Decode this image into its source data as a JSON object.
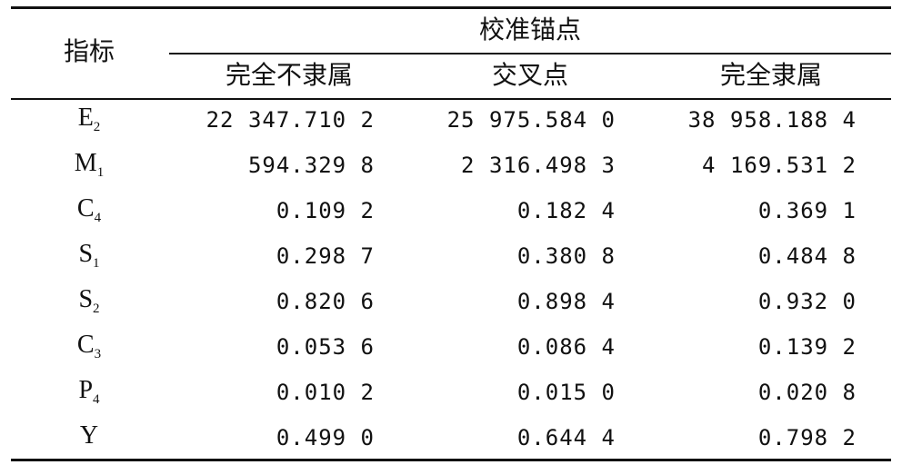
{
  "table": {
    "header": {
      "title": "指标",
      "group": "校准锚点",
      "columns": [
        "完全不隶属",
        "交叉点",
        "完全隶属"
      ]
    },
    "rows": [
      {
        "label": "E",
        "sub": "2",
        "cells": [
          "22 347.710 2",
          "25 975.584 0",
          "38 958.188 4"
        ]
      },
      {
        "label": "M",
        "sub": "1",
        "cells": [
          "594.329 8",
          "2 316.498 3",
          "4 169.531 2"
        ]
      },
      {
        "label": "C",
        "sub": "4",
        "cells": [
          "0.109 2",
          "0.182 4",
          "0.369 1"
        ]
      },
      {
        "label": "S",
        "sub": "1",
        "cells": [
          "0.298 7",
          "0.380 8",
          "0.484 8"
        ]
      },
      {
        "label": "S",
        "sub": "2",
        "cells": [
          "0.820 6",
          "0.898 4",
          "0.932 0"
        ]
      },
      {
        "label": "C",
        "sub": "3",
        "cells": [
          "0.053 6",
          "0.086 4",
          "0.139 2"
        ]
      },
      {
        "label": "P",
        "sub": "4",
        "cells": [
          "0.010 2",
          "0.015 0",
          "0.020 8"
        ]
      },
      {
        "label": "Y",
        "sub": null,
        "cells": [
          "0.499 0",
          "0.644 4",
          "0.798 2"
        ]
      }
    ]
  }
}
